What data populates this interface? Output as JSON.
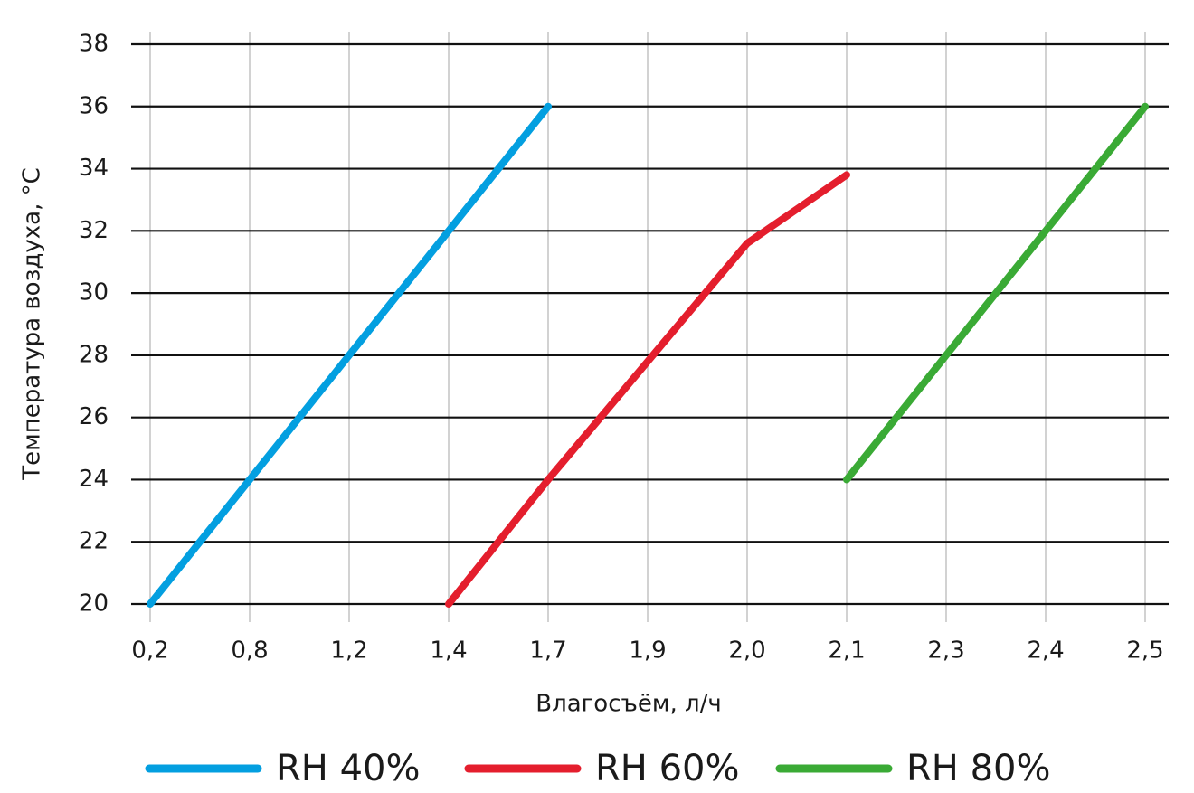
{
  "chart_data": {
    "type": "line",
    "x_label": "Влагосъём, л/ч",
    "y_label": "Температура воздуха, °C",
    "categories": [
      "0,2",
      "0,8",
      "1,2",
      "1,4",
      "1,7",
      "1,9",
      "2,0",
      "2,1",
      "2,3",
      "2,4",
      "2,5"
    ],
    "series": [
      {
        "name": "RH 40%",
        "color": "#039fe0",
        "values": [
          20,
          24,
          28,
          32,
          36,
          null,
          null,
          null,
          null,
          null,
          null
        ]
      },
      {
        "name": "RH 60%",
        "color": "#e41e2d",
        "values": [
          null,
          null,
          null,
          20,
          24,
          27.8,
          31.6,
          33.8,
          null,
          null,
          null
        ]
      },
      {
        "name": "RH 80%",
        "color": "#3aaa35",
        "values": [
          null,
          null,
          null,
          null,
          null,
          null,
          null,
          24,
          28,
          32,
          36
        ]
      }
    ],
    "ylim": [
      20,
      38
    ],
    "yticks": [
      20,
      22,
      24,
      26,
      28,
      30,
      32,
      34,
      36,
      38
    ],
    "grid": true,
    "legend": "bottom"
  }
}
